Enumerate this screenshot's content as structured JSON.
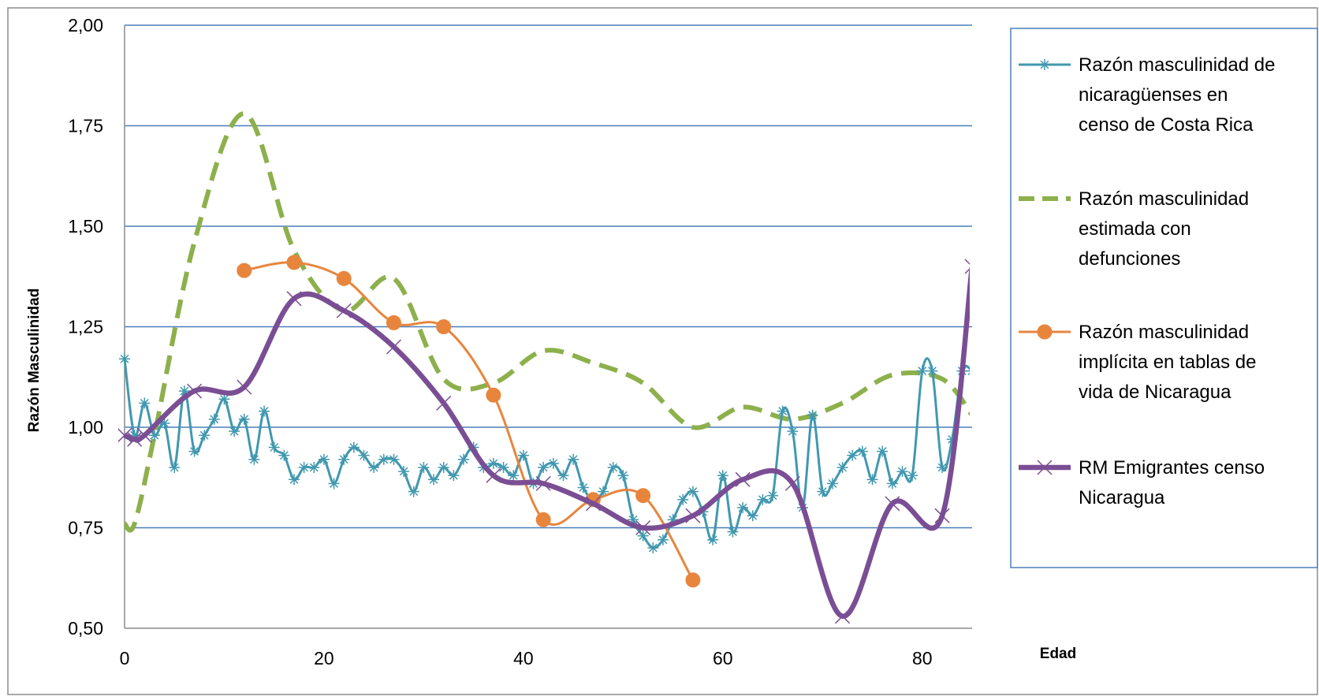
{
  "chart_data": {
    "type": "line",
    "title": "",
    "xlabel": "Edad",
    "ylabel": "Razón Masculinidad",
    "xlim": [
      0,
      85
    ],
    "ylim": [
      0.5,
      2.0
    ],
    "x_ticks": [
      0,
      20,
      40,
      60,
      80
    ],
    "x_tick_labels": [
      "0",
      "20",
      "40",
      "60",
      "80"
    ],
    "y_ticks": [
      0.5,
      0.75,
      1.0,
      1.25,
      1.5,
      1.75,
      2.0
    ],
    "y_tick_labels": [
      "0,50",
      "0,75",
      "1,00",
      "1,25",
      "1,50",
      "1,75",
      "2,00"
    ],
    "grid": "horizontal",
    "legend_position": "right",
    "series": [
      {
        "name": "Razón masculinidad de nicaragüenses en censo de Costa Rica",
        "color": "#4198AF",
        "style": "solid",
        "marker": "asterisk",
        "x": [
          0,
          1,
          2,
          3,
          4,
          5,
          6,
          7,
          8,
          9,
          10,
          11,
          12,
          13,
          14,
          15,
          16,
          17,
          18,
          19,
          20,
          21,
          22,
          23,
          24,
          25,
          26,
          27,
          28,
          29,
          30,
          31,
          32,
          33,
          34,
          35,
          36,
          37,
          38,
          39,
          40,
          41,
          42,
          43,
          44,
          45,
          46,
          47,
          48,
          49,
          50,
          51,
          52,
          53,
          54,
          55,
          56,
          57,
          58,
          59,
          60,
          61,
          62,
          63,
          64,
          65,
          66,
          67,
          68,
          69,
          70,
          71,
          72,
          73,
          74,
          75,
          76,
          77,
          78,
          79,
          80,
          81,
          82,
          83,
          84,
          85
        ],
        "y": [
          1.17,
          0.98,
          1.06,
          0.98,
          1.01,
          0.9,
          1.09,
          0.94,
          0.98,
          1.02,
          1.07,
          0.99,
          1.02,
          0.92,
          1.04,
          0.95,
          0.93,
          0.87,
          0.9,
          0.9,
          0.92,
          0.86,
          0.92,
          0.95,
          0.93,
          0.9,
          0.92,
          0.92,
          0.89,
          0.84,
          0.9,
          0.87,
          0.9,
          0.88,
          0.92,
          0.95,
          0.9,
          0.91,
          0.9,
          0.88,
          0.93,
          0.86,
          0.9,
          0.91,
          0.88,
          0.92,
          0.85,
          0.82,
          0.84,
          0.9,
          0.88,
          0.77,
          0.73,
          0.7,
          0.72,
          0.77,
          0.82,
          0.84,
          0.79,
          0.72,
          0.88,
          0.74,
          0.8,
          0.78,
          0.82,
          0.83,
          1.04,
          0.99,
          0.8,
          1.03,
          0.84,
          0.86,
          0.9,
          0.93,
          0.94,
          0.87,
          0.94,
          0.86,
          0.89,
          0.88,
          1.14,
          1.14,
          0.9,
          0.97,
          1.14,
          1.14
        ]
      },
      {
        "name": "Razón masculinidad estimada con defunciones",
        "color": "#8DB04C",
        "style": "dashed",
        "marker": "none",
        "x": [
          0,
          1,
          3,
          7,
          12,
          17,
          22,
          27,
          32,
          37,
          42,
          47,
          52,
          57,
          62,
          67,
          72,
          77,
          82,
          85
        ],
        "y": [
          0.76,
          0.76,
          0.98,
          1.46,
          1.78,
          1.44,
          1.29,
          1.37,
          1.12,
          1.11,
          1.19,
          1.16,
          1.11,
          1.0,
          1.05,
          1.02,
          1.06,
          1.13,
          1.12,
          1.03
        ]
      },
      {
        "name": "Razón masculinidad implícita en tablas de vida de Nicaragua",
        "color": "#E8853D",
        "style": "solid",
        "marker": "circle",
        "x": [
          12,
          17,
          22,
          27,
          32,
          37,
          42,
          47,
          52,
          57
        ],
        "y": [
          1.39,
          1.41,
          1.37,
          1.26,
          1.25,
          1.08,
          0.77,
          0.82,
          0.83,
          0.62
        ]
      },
      {
        "name": "RM Emigrantes censo Nicaragua",
        "color": "#7A4E94",
        "style": "solid",
        "marker": "x",
        "x": [
          0,
          1,
          2,
          7,
          12,
          17,
          22,
          27,
          32,
          37,
          42,
          47,
          52,
          57,
          62,
          67,
          72,
          77,
          82,
          85
        ],
        "y": [
          0.98,
          0.97,
          0.98,
          1.09,
          1.1,
          1.32,
          1.29,
          1.2,
          1.06,
          0.88,
          0.86,
          0.81,
          0.75,
          0.78,
          0.87,
          0.86,
          0.53,
          0.81,
          0.78,
          1.4
        ]
      }
    ]
  }
}
